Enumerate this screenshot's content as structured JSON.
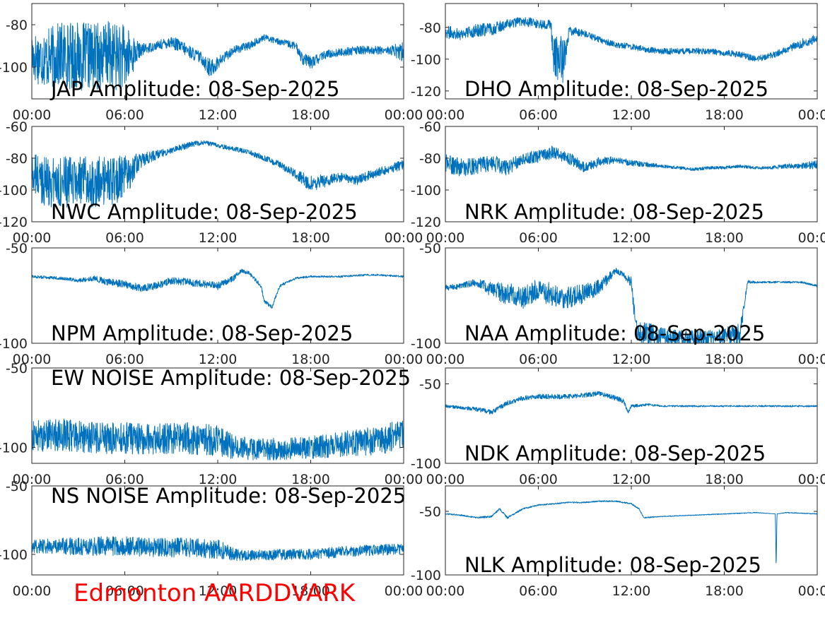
{
  "footer": {
    "label": "Edmonton AARDDVARK",
    "color": "#ff0000"
  },
  "trace_color": "#0072bd",
  "chart_data": [
    {
      "type": "line",
      "title": "JAP Amplitude: 08-Sep-2025",
      "x_tick_labels": [
        "00:00",
        "06:00",
        "12:00",
        "18:00",
        "00:00"
      ],
      "xlim": [
        0,
        24
      ],
      "ylim": [
        -115,
        -70
      ],
      "y_ticks": [
        -80,
        -100
      ],
      "y_tick_labels": [
        "-80",
        "-100"
      ],
      "series": [
        {
          "x": [
            0,
            1,
            2,
            3,
            4,
            5,
            6,
            7,
            8,
            9,
            10,
            11,
            11.5,
            12,
            13,
            14,
            15,
            16,
            17,
            17.5,
            18,
            19,
            20,
            21,
            22,
            23,
            24
          ],
          "y": [
            -95,
            -96,
            -94,
            -95,
            -95,
            -94,
            -96,
            -92,
            -90,
            -88,
            -92,
            -96,
            -101,
            -98,
            -92,
            -90,
            -86,
            -88,
            -90,
            -96,
            -98,
            -94,
            -93,
            -92,
            -92,
            -92,
            -93
          ],
          "noise": [
            12,
            14,
            16,
            16,
            16,
            16,
            16,
            3,
            2,
            3,
            3,
            3,
            5,
            3,
            2,
            2,
            1.5,
            1.5,
            2,
            3,
            3,
            2,
            2,
            2,
            2,
            2,
            5
          ]
        }
      ]
    },
    {
      "type": "line",
      "title": "DHO Amplitude: 08-Sep-2025",
      "x_tick_labels": [
        "00:00",
        "06:00",
        "12:00",
        "18:00",
        "00:00"
      ],
      "xlim": [
        0,
        24
      ],
      "ylim": [
        -125,
        -65
      ],
      "y_ticks": [
        -80,
        -100,
        -120
      ],
      "y_tick_labels": [
        "-80",
        "-100",
        "-120"
      ],
      "series": [
        {
          "x": [
            0,
            1,
            2,
            3,
            4,
            5,
            6,
            6.8,
            7,
            7.6,
            8,
            9,
            10,
            11,
            12,
            13,
            14,
            15,
            16,
            17,
            18,
            19,
            20,
            21,
            22,
            23,
            24
          ],
          "y": [
            -83,
            -84,
            -82,
            -81,
            -78,
            -76,
            -78,
            -78,
            -100,
            -100,
            -82,
            -84,
            -88,
            -91,
            -92,
            -94,
            -95,
            -95,
            -95,
            -95,
            -96,
            -97,
            -100,
            -98,
            -94,
            -90,
            -87
          ],
          "noise": [
            4,
            4,
            4,
            4,
            3,
            3,
            3,
            3,
            15,
            15,
            3,
            2,
            2,
            2,
            2,
            2,
            2,
            2,
            2,
            2,
            2,
            2,
            2,
            2,
            2,
            3,
            3
          ]
        }
      ]
    },
    {
      "type": "line",
      "title": "NWC Amplitude: 08-Sep-2025",
      "x_tick_labels": [
        "00:00",
        "06:00",
        "12:00",
        "18:00",
        "00:00"
      ],
      "xlim": [
        0,
        24
      ],
      "ylim": [
        -120,
        -60
      ],
      "y_ticks": [
        -60,
        -80,
        -100,
        -120
      ],
      "y_tick_labels": [
        "-60",
        "-80",
        "-100",
        "-120"
      ],
      "series": [
        {
          "x": [
            0,
            1,
            2,
            3,
            4,
            5,
            6,
            7,
            8,
            9,
            10,
            11,
            12,
            13,
            14,
            15,
            16,
            17,
            18,
            19,
            20,
            21,
            22,
            23,
            24
          ],
          "y": [
            -90,
            -95,
            -95,
            -95,
            -95,
            -95,
            -92,
            -82,
            -78,
            -75,
            -72,
            -70,
            -72,
            -74,
            -76,
            -80,
            -84,
            -90,
            -96,
            -94,
            -92,
            -94,
            -90,
            -87,
            -84
          ],
          "noise": [
            14,
            16,
            16,
            16,
            16,
            16,
            14,
            5,
            3,
            2,
            2,
            1.5,
            1.5,
            1.5,
            1.5,
            2,
            2,
            3,
            5,
            4,
            3,
            3,
            3,
            3,
            3
          ]
        }
      ]
    },
    {
      "type": "line",
      "title": "NRK Amplitude: 08-Sep-2025",
      "x_tick_labels": [
        "00:00",
        "06:00",
        "12:00",
        "18:00",
        "00:00"
      ],
      "xlim": [
        0,
        24
      ],
      "ylim": [
        -120,
        -60
      ],
      "y_ticks": [
        -60,
        -80,
        -100,
        -120
      ],
      "y_tick_labels": [
        "-60",
        "-80",
        "-100",
        "-120"
      ],
      "series": [
        {
          "x": [
            0,
            1,
            2,
            3,
            4,
            5,
            6,
            7,
            8,
            9,
            10,
            11,
            12,
            13,
            14,
            15,
            16,
            17,
            18,
            19,
            20,
            21,
            22,
            23,
            24
          ],
          "y": [
            -83,
            -86,
            -85,
            -83,
            -86,
            -80,
            -79,
            -76,
            -80,
            -86,
            -82,
            -81,
            -83,
            -84,
            -85,
            -86,
            -87,
            -86,
            -86,
            -85,
            -86,
            -86,
            -85,
            -85,
            -84
          ],
          "noise": [
            6,
            6,
            5,
            5,
            5,
            4,
            4,
            4,
            4,
            3,
            3,
            2,
            2,
            1.5,
            1,
            1,
            1,
            1,
            1,
            1,
            1,
            1,
            1.5,
            2,
            3
          ]
        }
      ]
    },
    {
      "type": "line",
      "title": "NPM Amplitude: 08-Sep-2025",
      "x_tick_labels": [
        "00:00",
        "06:00",
        "12:00",
        "18:00",
        "00:00"
      ],
      "xlim": [
        0,
        24
      ],
      "ylim": [
        -100,
        -50
      ],
      "y_ticks": [
        -50,
        -100
      ],
      "y_tick_labels": [
        "-50",
        "-100"
      ],
      "series": [
        {
          "x": [
            0,
            2,
            3,
            4,
            5,
            6,
            7,
            8,
            9,
            10,
            11,
            12,
            13,
            13.5,
            14,
            14.8,
            15,
            15.5,
            16,
            17,
            18,
            20,
            22,
            24
          ],
          "y": [
            -65,
            -66,
            -67,
            -66,
            -68,
            -69,
            -71,
            -70,
            -67,
            -68,
            -69,
            -70,
            -66,
            -62,
            -63,
            -70,
            -78,
            -81,
            -70,
            -66,
            -65,
            -65,
            -64,
            -65
          ],
          "noise": [
            0.8,
            0.8,
            1,
            1.5,
            2,
            2,
            2,
            2,
            2,
            2,
            2,
            2,
            1.5,
            1,
            1,
            1,
            1,
            1,
            0.8,
            0.6,
            0.5,
            0.5,
            0.5,
            0.5
          ]
        }
      ]
    },
    {
      "type": "line",
      "title": "NAA Amplitude: 08-Sep-2025",
      "x_tick_labels": [
        "00:00",
        "06:00",
        "12:00",
        "18:00",
        "00:00"
      ],
      "xlim": [
        0,
        24
      ],
      "ylim": [
        -100,
        -50
      ],
      "y_ticks": [
        -50,
        -100
      ],
      "y_tick_labels": [
        "-50",
        "-100"
      ],
      "series": [
        {
          "x": [
            0,
            1,
            2,
            3,
            4,
            5,
            6,
            7,
            8,
            9,
            10,
            11,
            11.5,
            12,
            12.3,
            13,
            14,
            15,
            16,
            17,
            18,
            19,
            19.5,
            20,
            21,
            22,
            23,
            24
          ],
          "y": [
            -71,
            -70,
            -68,
            -72,
            -74,
            -76,
            -72,
            -75,
            -76,
            -74,
            -70,
            -62,
            -64,
            -68,
            -94,
            -95,
            -96,
            -97,
            -97,
            -97,
            -96,
            -95,
            -68,
            -68,
            -68,
            -68,
            -68,
            -70
          ],
          "noise": [
            1.5,
            1.5,
            2,
            4,
            6,
            6,
            6,
            6,
            6,
            5,
            4,
            1.5,
            1.5,
            3,
            6,
            6,
            4,
            4,
            4,
            4,
            4,
            6,
            1,
            0.5,
            0.5,
            0.5,
            0.5,
            0.6
          ]
        }
      ]
    },
    {
      "type": "line",
      "title": "EW NOISE Amplitude: 08-Sep-2025",
      "x_tick_labels": [
        "00:00",
        "06:00",
        "12:00",
        "18:00",
        "00:00"
      ],
      "xlim": [
        0,
        24
      ],
      "ylim": [
        -110,
        -50
      ],
      "y_ticks": [
        -50,
        -100
      ],
      "y_tick_labels": [
        "-50",
        "-100"
      ],
      "series": [
        {
          "x": [
            0,
            2,
            4,
            6,
            8,
            10,
            12,
            13,
            14,
            16,
            18,
            20,
            22,
            24
          ],
          "y": [
            -93,
            -92,
            -94,
            -94,
            -95,
            -94,
            -96,
            -100,
            -101,
            -101,
            -100,
            -98,
            -96,
            -92
          ],
          "noise": [
            10,
            10,
            10,
            10,
            10,
            10,
            10,
            8,
            7,
            7,
            7,
            8,
            9,
            10
          ]
        }
      ]
    },
    {
      "type": "line",
      "title": "NDK Amplitude: 08-Sep-2025",
      "x_tick_labels": [
        "00:00",
        "06:00",
        "12:00",
        "18:00",
        "00:00"
      ],
      "xlim": [
        0,
        24
      ],
      "ylim": [
        -100,
        -40
      ],
      "y_ticks": [
        -50,
        -100
      ],
      "y_tick_labels": [
        "-50",
        "-100"
      ],
      "series": [
        {
          "x": [
            0,
            1,
            2,
            3,
            4,
            5,
            6,
            7,
            8,
            9,
            10,
            11,
            11.5,
            11.8,
            12,
            13,
            14,
            16,
            18,
            20,
            22,
            24
          ],
          "y": [
            -64,
            -65,
            -66,
            -68,
            -62,
            -59,
            -58,
            -58,
            -58,
            -57,
            -56,
            -59,
            -61,
            -68,
            -64,
            -63,
            -64,
            -64,
            -64,
            -64,
            -64,
            -64
          ],
          "noise": [
            1,
            1,
            1.5,
            1.5,
            1.5,
            1.5,
            1.5,
            1.5,
            1.5,
            1.5,
            1.5,
            1.5,
            1.5,
            1,
            1,
            0.8,
            0.5,
            0.5,
            0.5,
            0.5,
            0.5,
            0.5
          ]
        }
      ]
    },
    {
      "type": "line",
      "title": "NS NOISE Amplitude: 08-Sep-2025",
      "x_tick_labels": [
        "00:00",
        "06:00",
        "12:00",
        "18:00",
        "00:00"
      ],
      "xlim": [
        0,
        24
      ],
      "ylim": [
        -115,
        -50
      ],
      "y_ticks": [
        -50,
        -100
      ],
      "y_tick_labels": [
        "-50",
        "-100"
      ],
      "series": [
        {
          "x": [
            0,
            2,
            4,
            6,
            8,
            10,
            12,
            13,
            14,
            16,
            18,
            20,
            22,
            24
          ],
          "y": [
            -94,
            -94,
            -94,
            -94,
            -95,
            -95,
            -96,
            -100,
            -101,
            -100,
            -100,
            -98,
            -97,
            -96
          ],
          "noise": [
            5,
            6,
            7,
            7,
            7,
            7,
            7,
            5,
            4,
            4,
            4,
            4,
            4,
            4
          ]
        }
      ]
    },
    {
      "type": "line",
      "title": "NLK Amplitude: 08-Sep-2025",
      "x_tick_labels": [
        "00:00",
        "06:00",
        "12:00",
        "18:00",
        "00:00"
      ],
      "xlim": [
        0,
        24
      ],
      "ylim": [
        -100,
        -30
      ],
      "y_ticks": [
        -50,
        -100
      ],
      "y_tick_labels": [
        "-50",
        "-100"
      ],
      "series": [
        {
          "x": [
            0,
            1,
            2,
            3,
            3.5,
            4,
            5,
            6,
            7,
            8,
            9,
            10,
            11,
            12,
            12.5,
            12.8,
            14,
            16,
            18,
            20,
            21.3,
            21.35,
            21.4,
            22,
            24
          ],
          "y": [
            -52,
            -53,
            -55,
            -54,
            -48,
            -55,
            -48,
            -45,
            -44,
            -43,
            -43,
            -42,
            -42,
            -44,
            -48,
            -55,
            -54,
            -53,
            -52,
            -51,
            -52,
            -97,
            -52,
            -51,
            -52
          ],
          "noise": [
            0.5,
            0.5,
            0.6,
            0.8,
            0.8,
            0.8,
            0.6,
            0.5,
            0.5,
            0.5,
            0.5,
            0.5,
            0.5,
            0.5,
            0.5,
            0.5,
            0.3,
            0.3,
            0.3,
            0.3,
            0,
            0,
            0,
            0.3,
            0.3
          ]
        }
      ]
    }
  ]
}
